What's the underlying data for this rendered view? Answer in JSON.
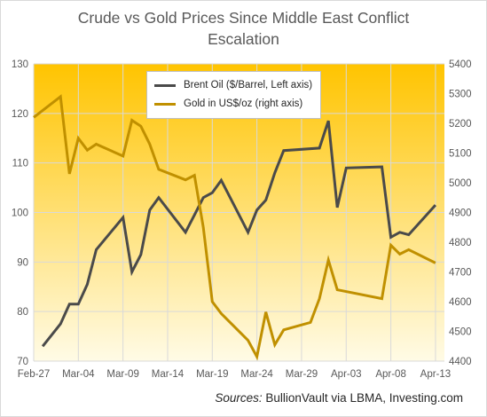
{
  "title_line1": "Crude vs Gold Prices Since Middle East Conflict",
  "title_line2": "Escalation",
  "source": {
    "lead": "Sources:",
    "text": " BullionVault via LBMA, Investing.com"
  },
  "colors": {
    "oil": "#4a4a4a",
    "gold": "#c09000",
    "bg_top": "#ffc400",
    "bg_bottom": "#fffbe6",
    "grid": "#d9d9d9",
    "axis_text": "#595959"
  },
  "chart_data": {
    "type": "line",
    "title": "Crude vs Gold Prices Since Middle East Conflict Escalation",
    "x_tick_labels": [
      "Feb-27",
      "Mar-04",
      "Mar-09",
      "Mar-14",
      "Mar-19",
      "Mar-24",
      "Mar-29",
      "Apr-03",
      "Apr-08",
      "Apr-13"
    ],
    "x_range": [
      "2026-02-27",
      "2026-04-14"
    ],
    "y_left": {
      "min": 70,
      "max": 130,
      "ticks": [
        70,
        80,
        90,
        100,
        110,
        120,
        130
      ]
    },
    "y_right": {
      "min": 4400,
      "max": 5400,
      "ticks": [
        4400,
        4500,
        4600,
        4700,
        4800,
        4900,
        5000,
        5100,
        5200,
        5300,
        5400
      ]
    },
    "grid": true,
    "legend_position": "top-left",
    "background": "vertical gradient, gold at top to pale yellow at bottom",
    "series": [
      {
        "name": "Brent Oil ($/Barrel, Left axis)",
        "axis": "left",
        "points": [
          [
            "2026-02-28",
            73.0
          ],
          [
            "2026-03-02",
            77.5
          ],
          [
            "2026-03-03",
            81.5
          ],
          [
            "2026-03-04",
            81.5
          ],
          [
            "2026-03-05",
            85.5
          ],
          [
            "2026-03-06",
            92.5
          ],
          [
            "2026-03-09",
            99.0
          ],
          [
            "2026-03-10",
            88.0
          ],
          [
            "2026-03-11",
            91.5
          ],
          [
            "2026-03-12",
            100.5
          ],
          [
            "2026-03-13",
            103.0
          ],
          [
            "2026-03-16",
            96.0
          ],
          [
            "2026-03-17",
            99.5
          ],
          [
            "2026-03-18",
            103.0
          ],
          [
            "2026-03-19",
            104.0
          ],
          [
            "2026-03-20",
            106.5
          ],
          [
            "2026-03-23",
            96.0
          ],
          [
            "2026-03-24",
            100.5
          ],
          [
            "2026-03-25",
            102.5
          ],
          [
            "2026-03-26",
            108.0
          ],
          [
            "2026-03-27",
            112.5
          ],
          [
            "2026-03-31",
            113.0
          ],
          [
            "2026-04-01",
            118.5
          ],
          [
            "2026-04-02",
            101.0
          ],
          [
            "2026-04-03",
            109.0
          ],
          [
            "2026-04-07",
            109.2
          ],
          [
            "2026-04-08",
            95.0
          ],
          [
            "2026-04-09",
            96.0
          ],
          [
            "2026-04-10",
            95.5
          ],
          [
            "2026-04-13",
            101.5
          ]
        ]
      },
      {
        "name": "Gold in US$/oz (right axis)",
        "axis": "right",
        "points": [
          [
            "2026-02-27",
            5220
          ],
          [
            "2026-03-02",
            5290
          ],
          [
            "2026-03-03",
            5030
          ],
          [
            "2026-03-04",
            5150
          ],
          [
            "2026-03-05",
            5110
          ],
          [
            "2026-03-06",
            5130
          ],
          [
            "2026-03-09",
            5090
          ],
          [
            "2026-03-10",
            5210
          ],
          [
            "2026-03-11",
            5190
          ],
          [
            "2026-03-12",
            5130
          ],
          [
            "2026-03-13",
            5045
          ],
          [
            "2026-03-16",
            5010
          ],
          [
            "2026-03-17",
            5025
          ],
          [
            "2026-03-18",
            4850
          ],
          [
            "2026-03-19",
            4600
          ],
          [
            "2026-03-20",
            4560
          ],
          [
            "2026-03-23",
            4470
          ],
          [
            "2026-03-24",
            4415
          ],
          [
            "2026-03-25",
            4565
          ],
          [
            "2026-03-26",
            4455
          ],
          [
            "2026-03-27",
            4505
          ],
          [
            "2026-03-30",
            4530
          ],
          [
            "2026-03-31",
            4610
          ],
          [
            "2026-04-01",
            4740
          ],
          [
            "2026-04-02",
            4640
          ],
          [
            "2026-04-07",
            4610
          ],
          [
            "2026-04-08",
            4790
          ],
          [
            "2026-04-09",
            4760
          ],
          [
            "2026-04-10",
            4775
          ],
          [
            "2026-04-13",
            4730
          ]
        ]
      }
    ]
  }
}
